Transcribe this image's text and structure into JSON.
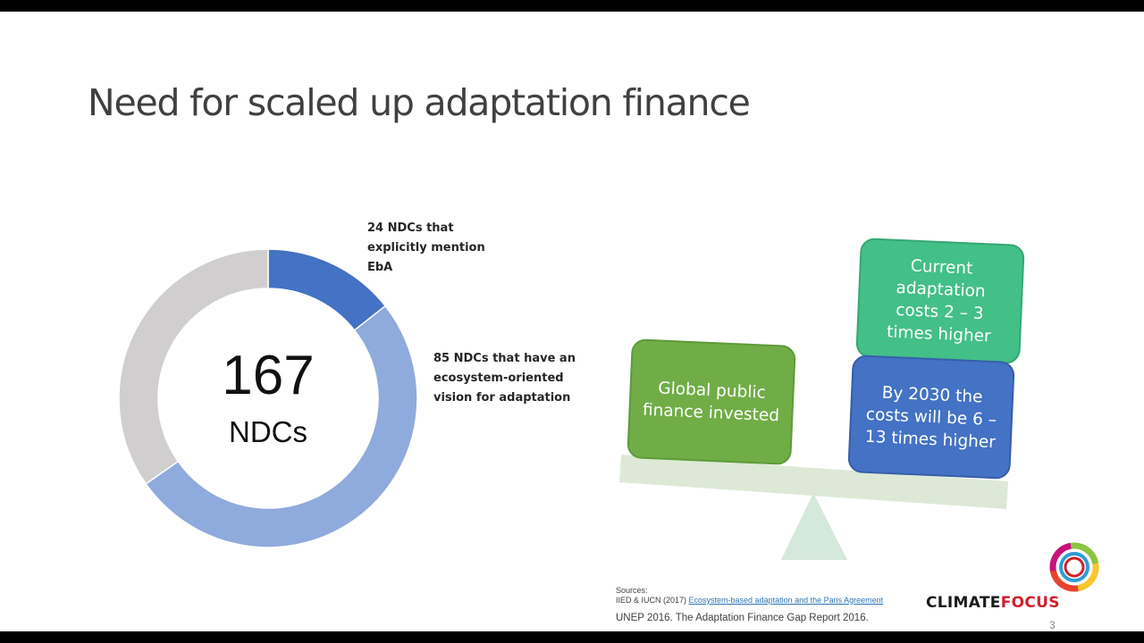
{
  "slide": {
    "title": "Need for scaled up adaptation finance",
    "page_number": "3"
  },
  "donut": {
    "center_value": "167",
    "center_unit": "NDCs",
    "label_eba": [
      "24 NDCs that",
      "explicitly mention",
      "EbA"
    ],
    "label_ecosystem": [
      "85 NDCs that have an",
      "ecosystem-oriented",
      "vision for adaptation"
    ]
  },
  "chart_data": {
    "type": "pie",
    "total": 167,
    "center_label": "167 NDCs",
    "slices": [
      {
        "label": "24 NDCs that explicitly mention EbA",
        "value": 24,
        "color": "#4472c4"
      },
      {
        "label": "85 NDCs that have an ecosystem-oriented vision for adaptation",
        "value": 85,
        "color": "#8faadc"
      },
      {
        "label": "",
        "value": 58,
        "color": "#d0cece"
      }
    ]
  },
  "scale": {
    "left_box": [
      "Global public",
      "finance invested"
    ],
    "right_top_box": [
      "Current",
      "adaptation",
      "costs 2 – 3",
      "times higher"
    ],
    "right_bottom_box": [
      "By 2030 the",
      "costs will be 6 –",
      "13 times higher"
    ]
  },
  "sources": {
    "heading": "Sources:",
    "line1_prefix": "IIED & IUCN (2017) ",
    "line1_link": "Ecosystem-based adaptation and the Paris Agreement",
    "line2": "UNEP 2016. The Adaptation Finance Gap Report 2016."
  },
  "logo": {
    "part1": "CLIMATE",
    "part2": "FOCUS"
  },
  "colors": {
    "eba": "#4472c4",
    "ecosystem": "#8faadc",
    "other": "#d0cece",
    "green_box": "#70ad47",
    "teal_box": "#43bf88",
    "blue_box": "#4472c4",
    "beam": "#dde9d6",
    "fulcrum": "#d5e8dc"
  }
}
